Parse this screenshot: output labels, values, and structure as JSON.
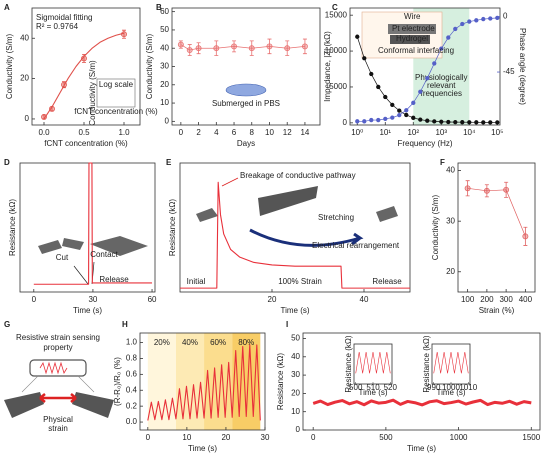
{
  "chart_data": [
    {
      "panel": "A",
      "type": "scatter",
      "xlabel": "fCNT concentration (%)",
      "ylabel": "Conductivity (S/m)",
      "xlim": [
        -0.15,
        1.2
      ],
      "ylim": [
        -3,
        55
      ],
      "xticks": [
        {
          "value": 0,
          "label": "0.0"
        },
        {
          "value": 0.5,
          "label": "0.5"
        },
        {
          "value": 1,
          "label": "1.0"
        }
      ],
      "yticks": [
        0,
        20,
        40
      ],
      "series": [
        {
          "x": [
            0,
            0.1,
            0.25,
            0.5,
            1.0
          ],
          "values": [
            1,
            5,
            17,
            30,
            42
          ],
          "errors": [
            1,
            1,
            1.5,
            2,
            2
          ],
          "color": "#e0504a",
          "marker": "circle",
          "line": false
        },
        {
          "x": [
            0,
            0.1,
            0.2,
            0.3,
            0.4,
            0.5,
            0.6,
            0.7,
            0.8,
            0.9,
            1.0
          ],
          "values": [
            0,
            6,
            13,
            20,
            26,
            31,
            35,
            38,
            40,
            41.5,
            42.5
          ],
          "color": "#e0504a",
          "marker": "none",
          "line": true
        }
      ],
      "annotations": [
        "Sigmoidal fitting",
        "R² = 0.9764",
        "Log scale"
      ],
      "inset_xlabel": "fCNT concentration (%)",
      "inset_ylabel": "Conductivity (S/m)"
    },
    {
      "panel": "B",
      "type": "scatter",
      "xlabel": "Days",
      "ylabel": "Conductivity (S/m)",
      "xlim": [
        -1,
        15.7
      ],
      "ylim": [
        -2,
        62
      ],
      "xticks": [
        0,
        2,
        4,
        6,
        8,
        10,
        12,
        14
      ],
      "yticks": [
        0,
        10,
        20,
        30,
        40,
        50,
        60
      ],
      "series": [
        {
          "x": [
            0,
            1,
            2,
            4,
            6,
            8,
            10,
            12,
            14
          ],
          "values": [
            42,
            39,
            40,
            40,
            41,
            40,
            41,
            40,
            41
          ],
          "errors": [
            2,
            3,
            3,
            4,
            3,
            4,
            4,
            4,
            4
          ],
          "color": "#e87070",
          "marker": "circle",
          "line": true
        }
      ],
      "annotations": [
        "Submerged in PBS"
      ]
    },
    {
      "panel": "C",
      "type": "scatter",
      "xscale": "log",
      "xlabel": "Frequency (Hz)",
      "ylabel": "Impedance, |Z| (kΩ)",
      "y2label": "Phase angle (degree)",
      "xlim": [
        0.55,
        125000
      ],
      "ylim": [
        -300,
        16000
      ],
      "y2lim": [
        -88,
        7
      ],
      "xticks": [
        {
          "value": 1,
          "label": "10⁰"
        },
        {
          "value": 10,
          "label": "10¹"
        },
        {
          "value": 100,
          "label": "10²"
        },
        {
          "value": 1000,
          "label": "10³"
        },
        {
          "value": 10000,
          "label": "10⁴"
        },
        {
          "value": 100000,
          "label": "10⁵"
        }
      ],
      "yticks": [
        0,
        5000,
        10000,
        15000
      ],
      "y2ticks": [
        0,
        -45
      ],
      "shade": [
        100,
        10000
      ],
      "shade_color": "#d6efdf",
      "shade_label": [
        "Physiologically",
        "relevant",
        "frequencies"
      ],
      "series": [
        {
          "x": [
            1,
            1.78,
            3.16,
            5.62,
            10,
            17.8,
            31.6,
            56.2,
            100,
            178,
            316,
            562,
            1000,
            1780,
            3160,
            5620,
            10000,
            17800,
            31600,
            56200,
            100000
          ],
          "values": [
            12000,
            9000,
            6800,
            5000,
            3600,
            2500,
            1700,
            1100,
            700,
            450,
            300,
            200,
            150,
            120,
            100,
            90,
            80,
            75,
            70,
            65,
            60
          ],
          "color": "#111111",
          "marker": "circle",
          "line": true
        },
        {
          "x": [
            1,
            1.78,
            3.16,
            5.62,
            10,
            17.8,
            31.6,
            56.2,
            100,
            178,
            316,
            562,
            1000,
            1780,
            3160,
            5620,
            10000,
            17800,
            31600,
            56200,
            100000
          ],
          "values": [
            -85,
            -85,
            -84,
            -84,
            -83,
            -82,
            -80,
            -76,
            -70,
            -61,
            -50,
            -38,
            -26,
            -17,
            -10,
            -6,
            -4,
            -3,
            -2,
            -1.5,
            -1
          ],
          "color": "#5560c8",
          "marker": "circle",
          "line": true,
          "axis": "y2"
        }
      ],
      "annotations": [
        "Wire",
        "Pt electrode",
        "Hydrogel",
        "Conformal interfacing"
      ]
    },
    {
      "panel": "D",
      "type": "line",
      "xlabel": "Time (s)",
      "ylabel": "Resistance (kΩ)",
      "xlim": [
        -7,
        61.5
      ],
      "ylim": [
        0,
        10
      ],
      "xticks": [
        0,
        30,
        60
      ],
      "series": [
        {
          "x": [
            0,
            27.8,
            28,
            29.5,
            29.7,
            60
          ],
          "values": [
            0.6,
            0.6,
            10,
            10,
            0.7,
            0.7
          ],
          "color": "#e8303a",
          "marker": "none",
          "line": true
        }
      ],
      "annotations": [
        "Cut",
        "Contact",
        "Release"
      ]
    },
    {
      "panel": "E",
      "type": "line",
      "xlabel": "Time (s)",
      "ylabel": "Resistance (kΩ)",
      "xlim": [
        0,
        50
      ],
      "ylim": [
        0,
        10
      ],
      "xticks": [
        20,
        40
      ],
      "series": [
        {
          "x": [
            0,
            8,
            8.3,
            8.8,
            9.5,
            11,
            13,
            16,
            20,
            25,
            35,
            35.2,
            50
          ],
          "values": [
            0.3,
            0.3,
            8.5,
            6,
            4.5,
            3.3,
            2.7,
            2.3,
            2.1,
            2,
            2,
            0.3,
            0.3
          ],
          "color": "#e8303a",
          "marker": "none",
          "line": true
        }
      ],
      "annotations": [
        "Breakage of conductive pathway",
        "Stretching",
        "Electrical rearrangement",
        "Initial",
        "100% Strain",
        "Release"
      ]
    },
    {
      "panel": "F",
      "type": "scatter",
      "xlabel": "Strain (%)",
      "ylabel": "Conductivity (S/m)",
      "xlim": [
        50,
        450
      ],
      "ylim": [
        16,
        41.5
      ],
      "xticks": [
        100,
        200,
        300,
        400
      ],
      "yticks": [
        20,
        30,
        40
      ],
      "series": [
        {
          "x": [
            100,
            200,
            300,
            400
          ],
          "values": [
            36.5,
            36,
            36.2,
            27
          ],
          "errors": [
            1.5,
            1.2,
            1.5,
            1.8
          ],
          "color": "#e06060",
          "marker": "circle",
          "line": true
        }
      ]
    },
    {
      "panel": "G",
      "type": "diagram",
      "title_lines": [
        "Resistive strain sensing",
        "property"
      ],
      "label_lines": [
        "Physical",
        "strain"
      ]
    },
    {
      "panel": "H",
      "type": "line",
      "xlabel": "Time (s)",
      "ylabel": "(R-R₀)/R₀ (%)",
      "xlim": [
        -2,
        30
      ],
      "ylim": [
        -0.1,
        1.12
      ],
      "xticks": [
        0,
        10,
        20,
        30
      ],
      "yticks": [
        {
          "value": 0,
          "label": "0.0"
        },
        {
          "value": 0.2,
          "label": "0.2"
        },
        {
          "value": 0.4,
          "label": "0.4"
        },
        {
          "value": 0.6,
          "label": "0.6"
        },
        {
          "value": 0.8,
          "label": "0.8"
        },
        {
          "value": 1,
          "label": "1.0"
        }
      ],
      "regions": [
        {
          "label": "20%",
          "start": 0,
          "end": 7.2,
          "color": "#fff6dc"
        },
        {
          "label": "40%",
          "start": 7.2,
          "end": 14.4,
          "color": "#fdeab4"
        },
        {
          "label": "60%",
          "start": 14.4,
          "end": 21.6,
          "color": "#fbdd8e"
        },
        {
          "label": "80%",
          "start": 21.6,
          "end": 28.8,
          "color": "#f8cd66"
        }
      ],
      "series": [
        {
          "x": [
            0,
            0.9,
            1.8,
            2.7,
            3.6,
            4.5,
            5.4,
            6.3,
            7.2,
            8.1,
            9,
            9.9,
            10.8,
            11.7,
            12.6,
            13.5,
            14.4,
            15.3,
            16.2,
            17.1,
            18,
            18.9,
            19.8,
            20.7,
            21.6,
            22.5,
            23.4,
            24.3,
            25.2,
            26.1,
            27,
            27.9,
            28.8
          ],
          "values": [
            0.02,
            0.25,
            0.03,
            0.26,
            0.03,
            0.28,
            0.03,
            0.3,
            0.04,
            0.42,
            0.04,
            0.45,
            0.04,
            0.47,
            0.05,
            0.5,
            0.05,
            0.65,
            0.05,
            0.68,
            0.06,
            0.72,
            0.06,
            0.75,
            0.06,
            0.9,
            0.07,
            0.95,
            0.07,
            0.97,
            0.07,
            0.97,
            0.02
          ],
          "color": "#e8303a",
          "marker": "none",
          "line": true
        }
      ]
    },
    {
      "panel": "I",
      "type": "line",
      "xlabel": "Time (s)",
      "ylabel": "Resistance (kΩ)",
      "xlim": [
        -70,
        1560
      ],
      "ylim": [
        0,
        53
      ],
      "xticks": [
        0,
        500,
        1000,
        1500
      ],
      "yticks": [
        0,
        10,
        20,
        30,
        40,
        50
      ],
      "series": [
        {
          "x": [
            0,
            50,
            100,
            150,
            200,
            250,
            300,
            350,
            400,
            450,
            500,
            550,
            600,
            650,
            700,
            750,
            800,
            850,
            900,
            950,
            1000,
            1050,
            1100,
            1150,
            1200,
            1250,
            1300,
            1350,
            1400,
            1450,
            1500
          ],
          "values": [
            14.5,
            15.8,
            13.9,
            15.2,
            16.1,
            14.3,
            15.5,
            13.8,
            15.9,
            14.7,
            15.1,
            16.3,
            14.0,
            15.6,
            14.9,
            13.7,
            15.4,
            16.0,
            14.4,
            15.0,
            15.8,
            14.2,
            15.3,
            16.2,
            13.9,
            15.1,
            14.6,
            15.7,
            14.1,
            15.5,
            14.8
          ],
          "color": "#e8303a",
          "marker": "none",
          "line": true
        }
      ],
      "insets": [
        {
          "xlabel": "Time (s)",
          "ylabel": "Resistance (kΩ)",
          "xlim": [
            499,
            521
          ],
          "ylim": [
            5,
            20
          ],
          "xticks": [
            500,
            510,
            520
          ],
          "x": [
            500,
            502,
            504,
            506,
            508,
            510,
            512,
            514,
            516,
            518,
            520
          ],
          "values": [
            9,
            17,
            9,
            17,
            9,
            17,
            9,
            17,
            9,
            17,
            9
          ],
          "color": "#e8303a"
        },
        {
          "xlabel": "Time (s)",
          "ylabel": "Resistance (kΩ)",
          "xlim": [
            989,
            1011
          ],
          "ylim": [
            5,
            20
          ],
          "xticks": [
            990,
            1000,
            1010
          ],
          "x": [
            990,
            992,
            994,
            996,
            998,
            1000,
            1002,
            1004,
            1006,
            1008,
            1010
          ],
          "values": [
            9,
            17,
            9,
            17,
            9,
            17,
            9,
            17,
            9,
            17,
            9
          ],
          "color": "#e8303a"
        }
      ]
    }
  ]
}
